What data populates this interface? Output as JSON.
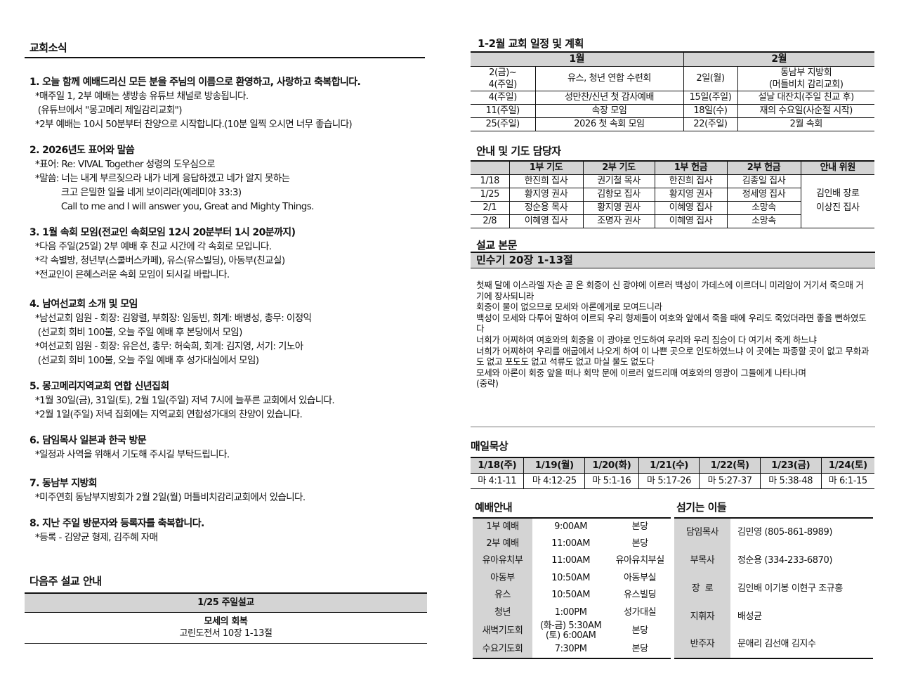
{
  "news": {
    "title": "교회소식",
    "items": [
      {
        "title": "1. 오늘 함께 예배드리신 모든 분을 주님의 이름으로 환영하고, 사랑하고 축복합니다.",
        "lines": [
          "*매주일 1, 2부 예배는 생방송 유튜브 채널로 방송됩니다.",
          " (유튜브에서 \"몽고메리 제일감리교회\")",
          "*2부 예배는 10시 50분부터 찬양으로 시작합니다.(10분 일찍 오시면 너무 좋습니다)"
        ]
      },
      {
        "title": "2. 2026년도 표어와 말씀",
        "lines": [
          "*표어: Re: VIVAL Together 성령의 도우심으로",
          "*말씀: 너는 내게 부르짖으라 내가 네게 응답하겠고 네가 알지 못하는",
          "          크고 은밀한 일을 네게 보이리라(예레미야 33:3)",
          "          Call to me and I will answer you, Great and Mighty Things."
        ]
      },
      {
        "title": "3. 1월 속회 모임(전교인 속회모임 12시 20분부터 1시 20분까지)",
        "lines": [
          "*다음 주일(25일) 2부 예배 후 친교 시간에 각 속회로 모입니다.",
          "*각 속별방, 청년부(스쿨버스카페), 유스(유스빌딩), 아동부(친교실)",
          "*전교인이 은혜스러운 속회 모임이 되시길 바랍니다."
        ]
      },
      {
        "title": "4. 남여선교회 소개 및 모임",
        "lines": [
          "*남선교회 임원 - 회장: 김왕렬, 부회장: 임동빈, 회계: 배병성, 총무: 이정익",
          " (선교회 회비 100불, 오늘 주일 예배 후 본당에서 모임)",
          "*여선교회 임원 - 회장: 유은선, 총무: 허숙희, 회계: 김지영, 서기: 기노아",
          " (선교회 회비 100불, 오늘 주일 예배 후 성가대실에서 모임)"
        ]
      },
      {
        "title": "5. 몽고메리지역교회 연합 신년집회",
        "lines": [
          "*1월 30일(금), 31일(토), 2월 1일(주일) 저녁 7시에 늘푸른 교회에서 있습니다.",
          "*2월 1일(주일) 저녁 집회에는 지역교회 연합성가대의 찬양이 있습니다."
        ]
      },
      {
        "title": "6. 담임목사 일본과 한국 방문",
        "lines": [
          "*일정과 사역을 위해서 기도해 주시길 부탁드립니다."
        ]
      },
      {
        "title": "7. 동남부 지방회",
        "lines": [
          "*미주연회 동남부지방회가 2월 2일(월) 머틀비치감리교회에서 있습니다."
        ]
      },
      {
        "title": "8. 지난 주일 방문자와 등록자를 축복합니다.",
        "lines": [
          "*등록 - 김양균 형제, 김주혜 자매"
        ]
      }
    ]
  },
  "next_sermon": {
    "title": "다음주 설교 안내",
    "header": "1/25 주일설교",
    "sermon_title": "모세의 회복",
    "passage": "고린도전서 10장 1-13절"
  },
  "schedule": {
    "title": "1-2월 교회 일정 및 계획",
    "months": [
      "1월",
      "2월"
    ],
    "rows": [
      {
        "jan_date": "2(금)~\n4(주일)",
        "jan_event": "유스, 청년 연합 수련회",
        "feb_date": "2일(월)",
        "feb_event": "동남부 지방회\n(머틀비치 감리교회)"
      },
      {
        "jan_date": "4(주일)",
        "jan_event": "성만찬/신년 첫 감사예배",
        "feb_date": "15일(주일)",
        "feb_event": "설날 대잔치(주일 친교 후)"
      },
      {
        "jan_date": "11(주일)",
        "jan_event": "속장 모임",
        "feb_date": "18일(수)",
        "feb_event": "재의 수요일(사순절 시작)"
      },
      {
        "jan_date": "25(주일)",
        "jan_event": "2026 첫 속회 모임",
        "feb_date": "22(주일)",
        "feb_event": "2월 속회"
      }
    ]
  },
  "duty": {
    "title": "안내 및 기도 담당자",
    "headers": [
      "",
      "1부 기도",
      "2부 기도",
      "1부 헌금",
      "2부 헌금",
      "안내 위원"
    ],
    "rows": [
      [
        "1/18",
        "한진희 집사",
        "권기철 목사",
        "한진희 집사",
        "김종일 집사"
      ],
      [
        "1/25",
        "황지영 권사",
        "김항모 집사",
        "황지영 권사",
        "정세영 집사"
      ],
      [
        "2/1",
        "정순용 목사",
        "황지영 권사",
        "이혜영 집사",
        "소망속"
      ],
      [
        "2/8",
        "이혜영 집사",
        "조명자 권사",
        "이혜영 집사",
        "소망속"
      ]
    ],
    "ushers": [
      "김인배 장로",
      "이상진 집사"
    ]
  },
  "sermon": {
    "title": "설교 본문",
    "passage": "민수기 20장 1-13절",
    "text": "첫째 달에 이스라엘 자손 곧 온 회중이 신 광야에 이르러 백성이 가데스에 이르더니 미리암이 거기서 죽으매 거기에 장사되니라\n회중이 물이 없으므로 모세와 아론에게로 모여드니라\n백성이 모세와 다투어 말하여 이르되 우리 형제들이 여호와 앞에서 죽을 때에 우리도 죽었더라면 좋을 뻔하였도다\n너희가 어찌하여 여호와의 회중을 이 광야로 인도하여 우리와 우리 짐승이 다 여기서 죽게 하느냐\n너희가 어찌하여 우리를 애굽에서 나오게 하여 이 나쁜 곳으로 인도하였느냐 이 곳에는 파종할 곳이 없고 무화과도 없고 포도도 없고 석류도 없고 마실 물도 없도다\n모세와 아론이 회중 앞을 떠나 회막 문에 이르러 엎드리매 여호와의 영광이 그들에게 나타나며\n(중략)"
  },
  "daily": {
    "title": "매일묵상",
    "days": [
      "1/18(주)",
      "1/19(월)",
      "1/20(화)",
      "1/21(수)",
      "1/22(목)",
      "1/23(금)",
      "1/24(토)"
    ],
    "readings": [
      "마 4:1-11",
      "마 4:12-25",
      "마 5:1-16",
      "마 5:17-26",
      "마 5:27-37",
      "마 5:38-48",
      "마 6:1-15"
    ]
  },
  "worship": {
    "title": "예배안내",
    "rows": [
      [
        "1부 예배",
        "9:00AM",
        "본당"
      ],
      [
        "2부 예배",
        "11:00AM",
        "본당"
      ],
      [
        "유아유치부",
        "11:00AM",
        "유아유치부실"
      ],
      [
        "아동부",
        "10:50AM",
        "아동부실"
      ],
      [
        "유스",
        "10:50AM",
        "유스빌딩"
      ],
      [
        "청년",
        "1:00PM",
        "성가대실"
      ],
      [
        "새벽기도회",
        "(화-금) 5:30AM\n(토) 6:00AM",
        "본당"
      ],
      [
        "수요기도회",
        "7:30PM",
        "본당"
      ]
    ]
  },
  "servants": {
    "title": "섬기는 이들",
    "rows": [
      [
        "담임목사",
        "김민영 (805-861-8989)"
      ],
      [
        "부목사",
        "정순용 (334-233-6870)"
      ],
      [
        "장  로",
        "김인배 이기봉 이현구 조규홍"
      ],
      [
        "지휘자",
        "배성균"
      ],
      [
        "반주자",
        "문애리 김선애 김지수"
      ]
    ]
  }
}
